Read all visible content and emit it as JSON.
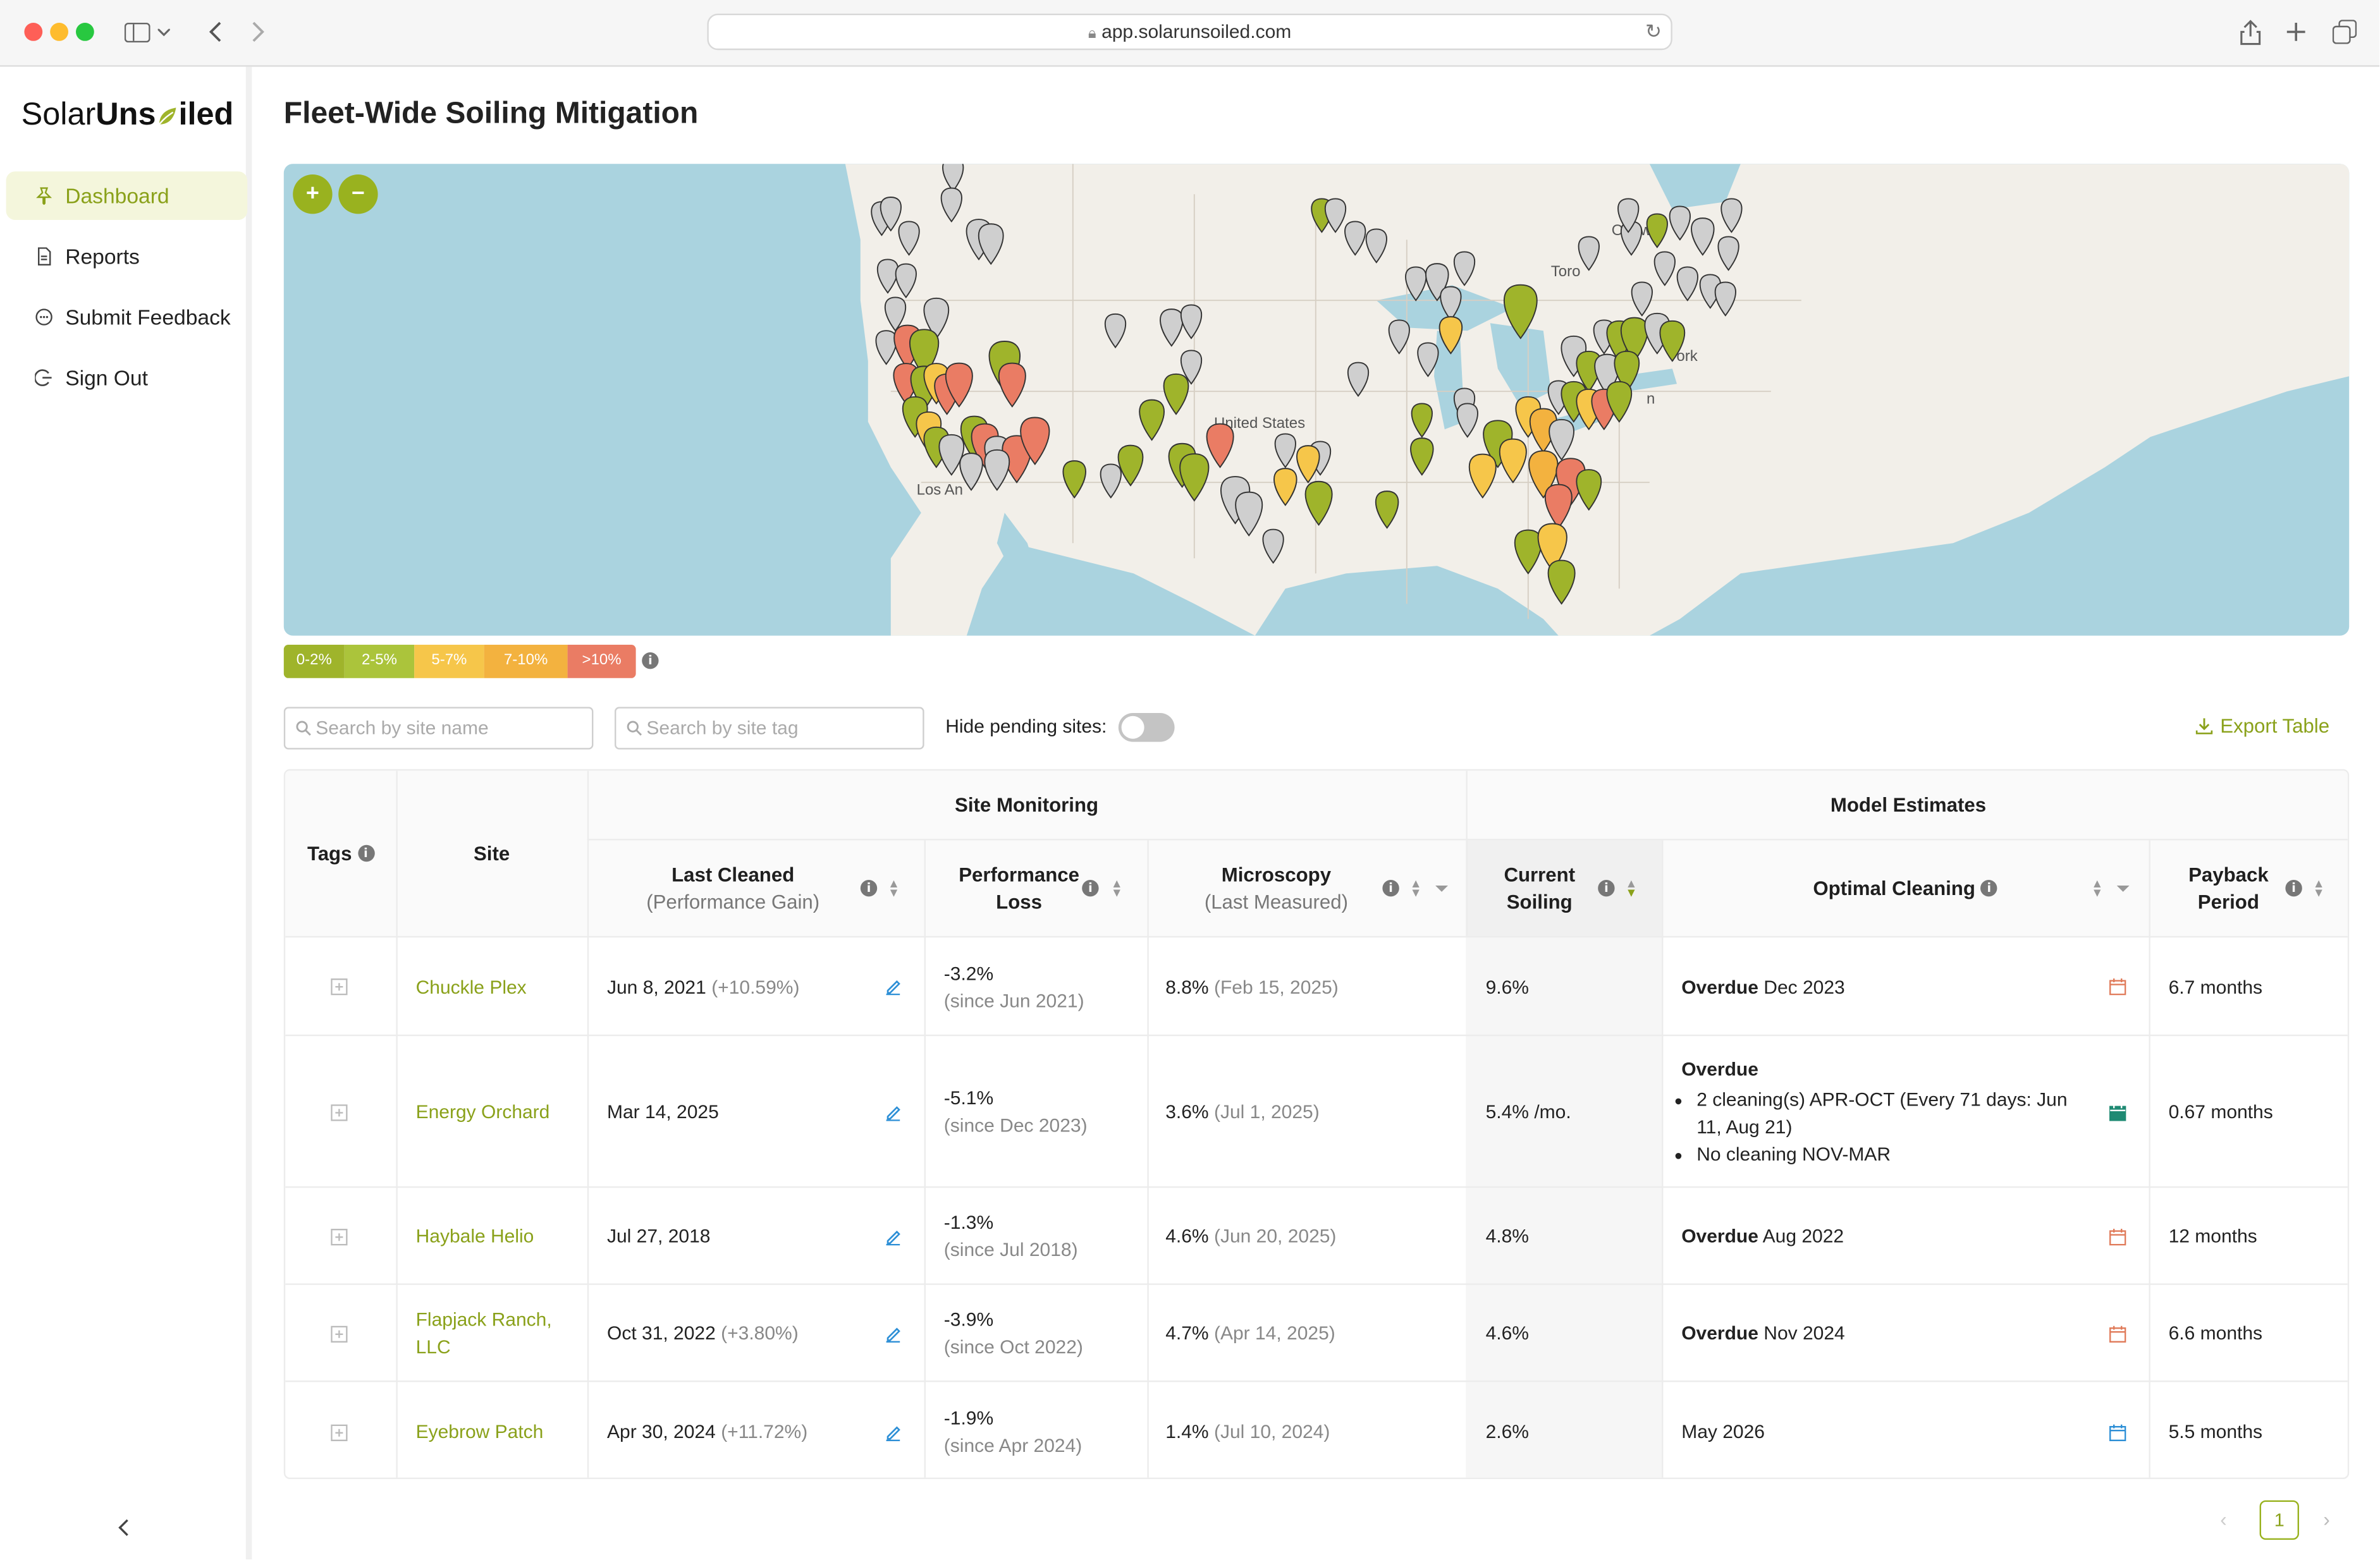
{
  "browser": {
    "url": "app.solarunsoiled.com"
  },
  "sidebar": {
    "logo": {
      "part1": "Solar",
      "part2": "Uns",
      "part3": "iled"
    },
    "items": [
      {
        "label": "Dashboard"
      },
      {
        "label": "Reports"
      },
      {
        "label": "Submit Feedback"
      },
      {
        "label": "Sign Out"
      }
    ],
    "collapse_icon": "chevron-left-icon"
  },
  "page": {
    "title": "Fleet-Wide Soiling Mitigation"
  },
  "map": {
    "zoom_in": "+",
    "zoom_out": "−",
    "labels": {
      "ottawa": "Ottawa",
      "toronto": "Toro",
      "newyork": "York",
      "n": "n",
      "united_states": "United States",
      "los_angeles": "Los An"
    },
    "legend": [
      {
        "label": "0-2%",
        "color": "#9fb42b"
      },
      {
        "label": "2-5%",
        "color": "#abc43b"
      },
      {
        "label": "5-7%",
        "color": "#f6c64a"
      },
      {
        "label": "7-10%",
        "color": "#f3b23f"
      },
      {
        "label": ">10%",
        "color": "#ea7c64"
      }
    ]
  },
  "controls": {
    "site_search_placeholder": "Search by site name",
    "tag_search_placeholder": "Search by site tag",
    "hide_pending_label": "Hide pending sites:",
    "export_label": "Export Table"
  },
  "table": {
    "group_site_monitoring": "Site Monitoring",
    "group_model_estimates": "Model Estimates",
    "headers": {
      "tags": "Tags",
      "site": "Site",
      "last_cleaned": "Last Cleaned",
      "last_cleaned_sub": "(Performance Gain)",
      "perf_loss_1": "Performance",
      "perf_loss_2": "Loss",
      "microscopy": "Microscopy",
      "microscopy_sub": "(Last Measured)",
      "current_soiling_1": "Current",
      "current_soiling_2": "Soiling",
      "optimal_cleaning": "Optimal Cleaning",
      "payback_1": "Payback",
      "payback_2": "Period"
    },
    "rows": [
      {
        "site": "Chuckle Plex",
        "last_cleaned": "Jun 8, 2021",
        "gain": "(+10.59%)",
        "loss": "-3.2%",
        "loss_since": "(since Jun 2021)",
        "microscopy": "8.8%",
        "micro_date": "(Feb 15, 2025)",
        "soiling": "9.6%",
        "cleaning_bold": "Overdue",
        "cleaning_text": "Dec 2023",
        "payback": "6.7 months"
      },
      {
        "site": "Energy Orchard",
        "last_cleaned": "Mar 14, 2025",
        "gain": "",
        "loss": "-5.1%",
        "loss_since": "(since Dec 2023)",
        "microscopy": "3.6%",
        "micro_date": "(Jul 1, 2025)",
        "soiling": "5.4% /mo.",
        "cleaning_bold": "Overdue",
        "bullet1": "2 cleaning(s) APR-OCT (Every 71 days: Jun 11, Aug 21)",
        "bullet2": "No cleaning NOV-MAR",
        "payback": "0.67 months"
      },
      {
        "site": "Haybale Helio",
        "last_cleaned": "Jul 27, 2018",
        "gain": "",
        "loss": "-1.3%",
        "loss_since": "(since Jul 2018)",
        "microscopy": "4.6%",
        "micro_date": "(Jun 20, 2025)",
        "soiling": "4.8%",
        "cleaning_bold": "Overdue",
        "cleaning_text": "Aug 2022",
        "payback": "12 months"
      },
      {
        "site": "Flapjack Ranch, LLC",
        "last_cleaned": "Oct 31, 2022",
        "gain": "(+3.80%)",
        "loss": "-3.9%",
        "loss_since": "(since Oct 2022)",
        "microscopy": "4.7%",
        "micro_date": "(Apr 14, 2025)",
        "soiling": "4.6%",
        "cleaning_bold": "Overdue",
        "cleaning_text": "Nov 2024",
        "payback": "6.6 months"
      },
      {
        "site": "Eyebrow Patch",
        "last_cleaned": "Apr 30, 2024",
        "gain": "(+11.72%)",
        "loss": "-1.9%",
        "loss_since": "(since Apr 2024)",
        "microscopy": "1.4%",
        "micro_date": "(Jul 10, 2024)",
        "soiling": "2.6%",
        "cleaning_bold": "",
        "cleaning_text": "May 2026",
        "payback": "5.5 months"
      }
    ]
  },
  "pagination": {
    "current": "1"
  },
  "colors": {
    "accent": "#99b21f",
    "accent_text": "#8aa11a",
    "overdue_calendar": "#e07b5a",
    "scheduled_calendar": "#2d8fd6",
    "active_calendar": "#1f8a73"
  }
}
